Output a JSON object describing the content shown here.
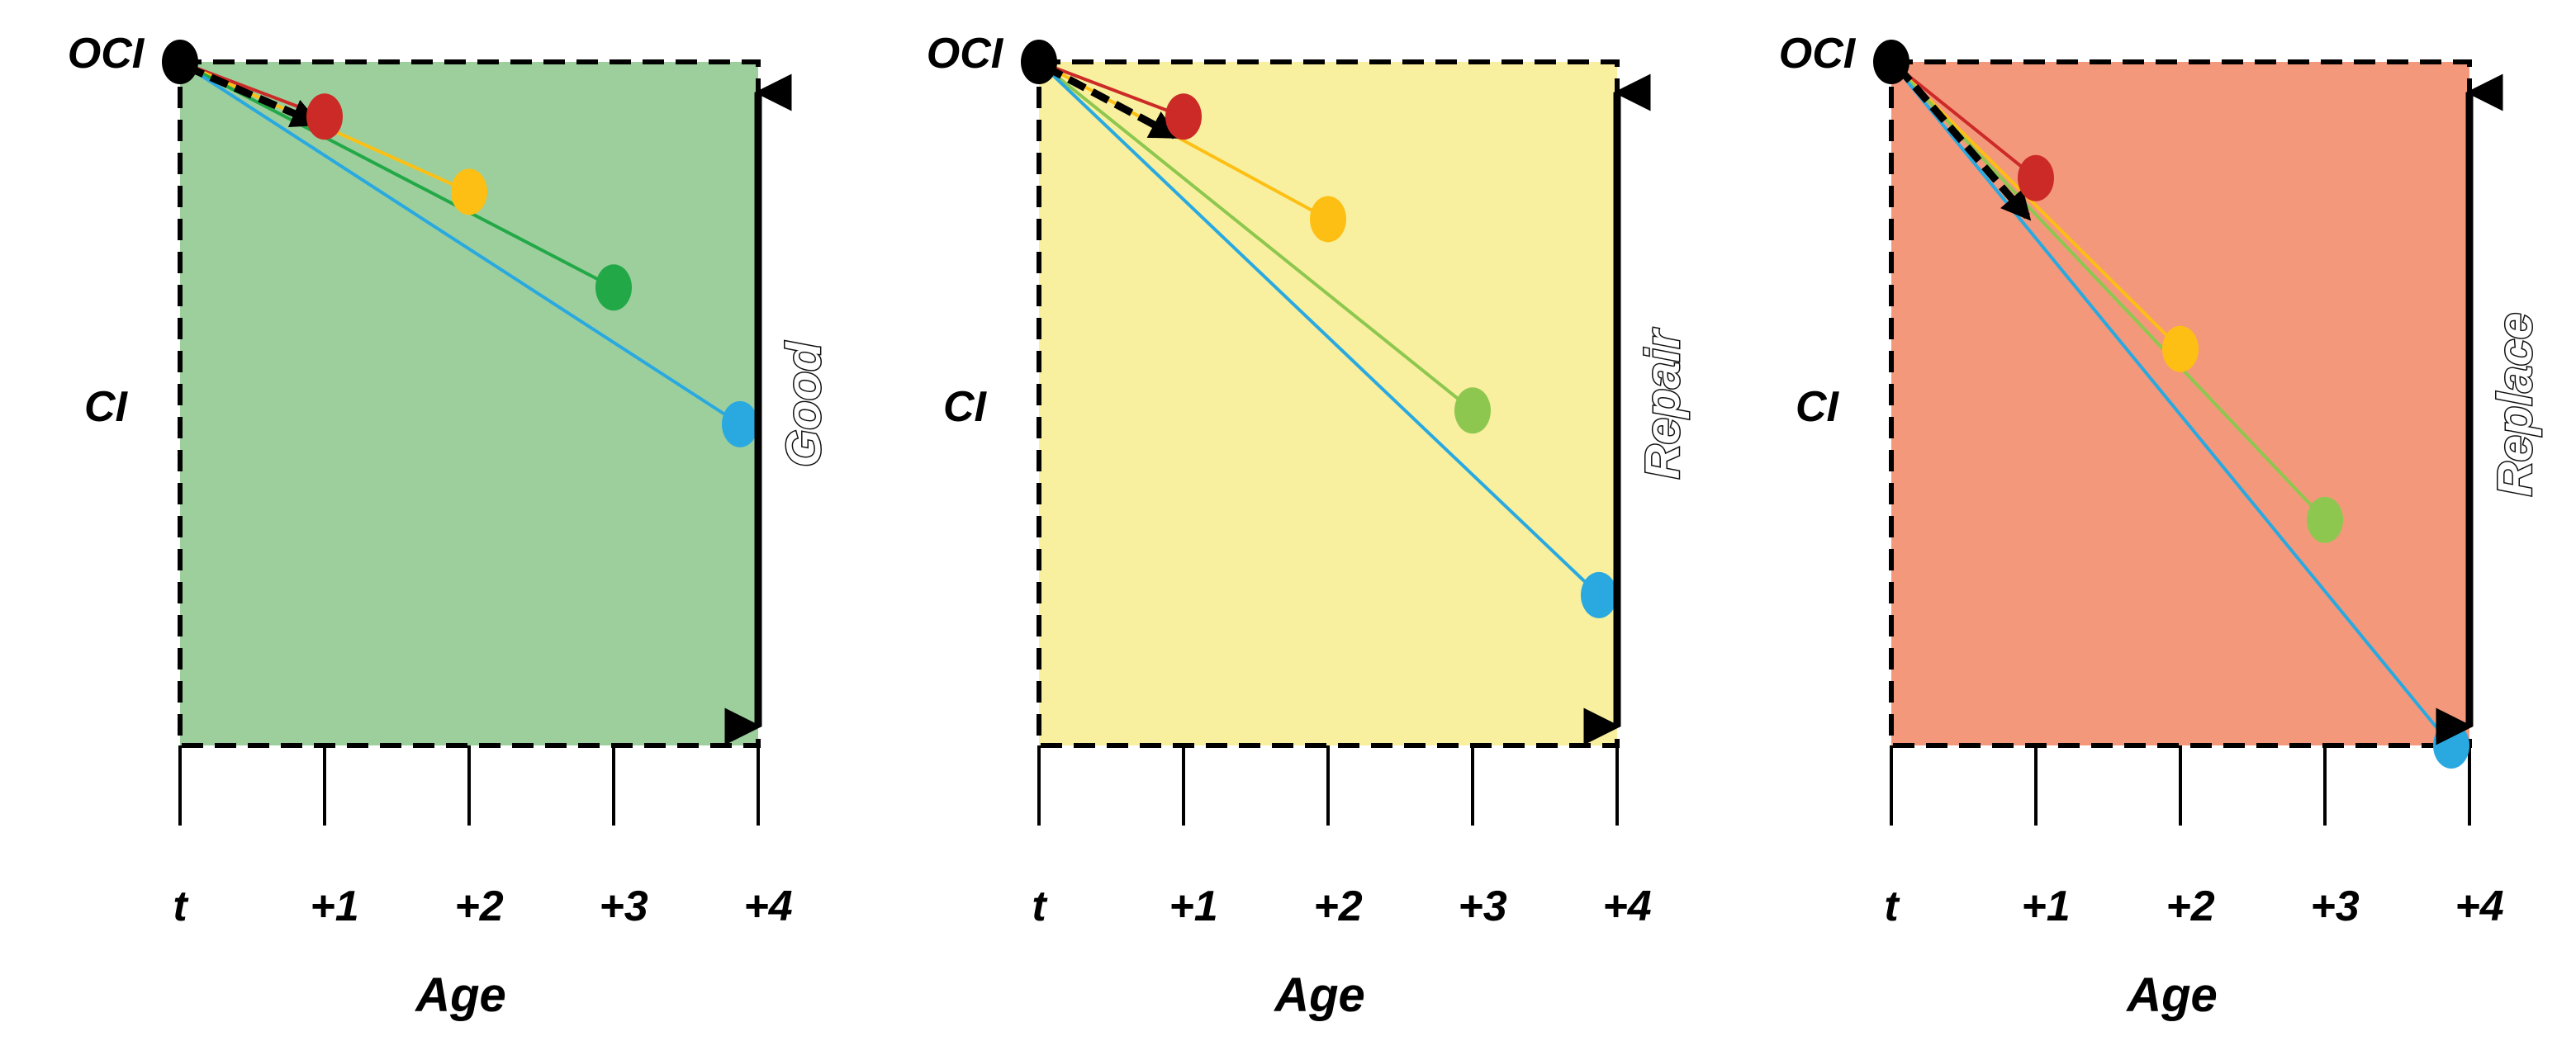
{
  "figure": {
    "y_top_label": "OCI",
    "y_mid_label": "CI",
    "x_axis_label": "Age",
    "ticks": [
      "t",
      "+1",
      "+2",
      "+3",
      "+4"
    ]
  },
  "panels": [
    {
      "state": "Good",
      "background": "#9ccf9c",
      "points": [
        {
          "age": 1,
          "color": "#cc2a27",
          "drop": 0.08
        },
        {
          "age": 2,
          "color": "#fdbf14",
          "drop": 0.19
        },
        {
          "age": 3,
          "color": "#23a848",
          "drop": 0.33
        },
        {
          "age": 4,
          "color": "#2aa9e0",
          "drop": 0.53
        }
      ]
    },
    {
      "state": "Repair",
      "background": "#f8f09e",
      "points": [
        {
          "age": 1,
          "color": "#cc2a27",
          "drop": 0.08
        },
        {
          "age": 2,
          "color": "#fdbf14",
          "drop": 0.23
        },
        {
          "age": 3,
          "color": "#8dc74f",
          "drop": 0.51
        },
        {
          "age": 4,
          "color": "#2aa9e0",
          "drop": 0.78
        }
      ]
    },
    {
      "state": "Replace",
      "background": "#f4987c",
      "points": [
        {
          "age": 1,
          "color": "#cc2a27",
          "drop": 0.17
        },
        {
          "age": 2,
          "color": "#fdbf14",
          "drop": 0.42
        },
        {
          "age": 3,
          "color": "#8dc74f",
          "drop": 0.67
        },
        {
          "age": 4,
          "color": "#2aa9e0",
          "drop": 1.0
        }
      ]
    }
  ]
}
